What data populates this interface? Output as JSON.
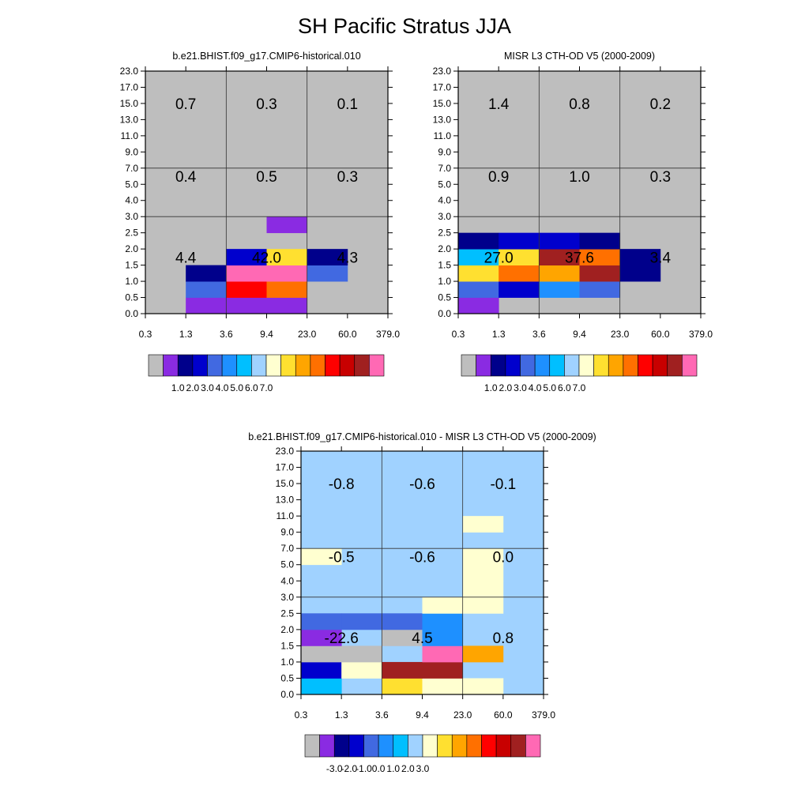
{
  "title": "SH Pacific Stratus JJA",
  "palettes": {
    "abs": [
      "#bebebe",
      "#8a2be2",
      "#00008b",
      "#0000cd",
      "#4169e1",
      "#1e90ff",
      "#00bfff",
      "#a0d2ff",
      "#ffffd0",
      "#ffe030",
      "#ffa500",
      "#ff7000",
      "#ff0000",
      "#c80000",
      "#a02020",
      "#ff69b4"
    ],
    "diff": [
      "#bebebe",
      "#8a2be2",
      "#00008b",
      "#0000cd",
      "#4169e1",
      "#1e90ff",
      "#00bfff",
      "#a0d2ff",
      "#ffffd0",
      "#ffe030",
      "#ffa500",
      "#ff7000",
      "#ff0000",
      "#c80000",
      "#a02020",
      "#ff69b4"
    ]
  },
  "chart_data": [
    {
      "type": "heatmap",
      "name": "model",
      "title": "b.e21.BHIST.f09_g17.CMIP6-historical.010",
      "x_ticks": [
        "0.3",
        "1.3",
        "3.6",
        "9.4",
        "23.0",
        "60.0",
        "379.0"
      ],
      "y_ticks": [
        "0.0",
        "0.5",
        "1.0",
        "1.5",
        "2.0",
        "2.5",
        "3.0",
        "4.0",
        "5.0",
        "7.0",
        "9.0",
        "11.0",
        "13.0",
        "15.0",
        "17.0",
        "23.0"
      ],
      "background_color_index": 0,
      "cells": [
        {
          "col": 1,
          "row": 0,
          "c": 1
        },
        {
          "col": 2,
          "row": 0,
          "c": 1
        },
        {
          "col": 3,
          "row": 0,
          "c": 1
        },
        {
          "col": 1,
          "row": 1,
          "c": 4
        },
        {
          "col": 2,
          "row": 1,
          "c": 12
        },
        {
          "col": 3,
          "row": 1,
          "c": 11
        },
        {
          "col": 1,
          "row": 2,
          "c": 2
        },
        {
          "col": 2,
          "row": 2,
          "c": 15
        },
        {
          "col": 3,
          "row": 2,
          "c": 15
        },
        {
          "col": 4,
          "row": 2,
          "c": 4
        },
        {
          "col": 2,
          "row": 3,
          "c": 3
        },
        {
          "col": 3,
          "row": 3,
          "c": 9
        },
        {
          "col": 4,
          "row": 3,
          "c": 2
        },
        {
          "col": 3,
          "row": 5,
          "c": 1
        }
      ],
      "annotations": [
        {
          "col": 0.5,
          "row": 3,
          "text": "4.4"
        },
        {
          "col": 2.5,
          "row": 3,
          "text": "42.0"
        },
        {
          "col": 4.5,
          "row": 3,
          "text": "4.3"
        },
        {
          "col": 0.5,
          "row": 8,
          "text": "0.4"
        },
        {
          "col": 2.5,
          "row": 8,
          "text": "0.5"
        },
        {
          "col": 4.5,
          "row": 8,
          "text": "0.3"
        },
        {
          "col": 0.5,
          "row": 12.5,
          "text": "0.7"
        },
        {
          "col": 2.5,
          "row": 12.5,
          "text": "0.3"
        },
        {
          "col": 4.5,
          "row": 12.5,
          "text": "0.1"
        }
      ],
      "colorbar_labels": [
        "1.0",
        "2.0",
        "3.0",
        "4.0",
        "5.0",
        "6.0",
        "7.0"
      ]
    },
    {
      "type": "heatmap",
      "name": "obs",
      "title": "MISR L3 CTH-OD V5 (2000-2009)",
      "x_ticks": [
        "0.3",
        "1.3",
        "3.6",
        "9.4",
        "23.0",
        "60.0",
        "379.0"
      ],
      "y_ticks": [
        "0.0",
        "0.5",
        "1.0",
        "1.5",
        "2.0",
        "2.5",
        "3.0",
        "4.0",
        "5.0",
        "7.0",
        "9.0",
        "11.0",
        "13.0",
        "15.0",
        "17.0",
        "23.0"
      ],
      "background_color_index": 0,
      "cells": [
        {
          "col": 0,
          "row": 0,
          "c": 1
        },
        {
          "col": 0,
          "row": 1,
          "c": 4
        },
        {
          "col": 1,
          "row": 1,
          "c": 3
        },
        {
          "col": 2,
          "row": 1,
          "c": 5
        },
        {
          "col": 3,
          "row": 1,
          "c": 4
        },
        {
          "col": 0,
          "row": 2,
          "c": 9
        },
        {
          "col": 1,
          "row": 2,
          "c": 11
        },
        {
          "col": 2,
          "row": 2,
          "c": 10
        },
        {
          "col": 3,
          "row": 2,
          "c": 14
        },
        {
          "col": 4,
          "row": 2,
          "c": 2
        },
        {
          "col": 0,
          "row": 3,
          "c": 6
        },
        {
          "col": 1,
          "row": 3,
          "c": 9
        },
        {
          "col": 2,
          "row": 3,
          "c": 14
        },
        {
          "col": 3,
          "row": 3,
          "c": 11
        },
        {
          "col": 4,
          "row": 3,
          "c": 2
        },
        {
          "col": 0,
          "row": 4,
          "c": 2
        },
        {
          "col": 1,
          "row": 4,
          "c": 3
        },
        {
          "col": 2,
          "row": 4,
          "c": 3
        },
        {
          "col": 3,
          "row": 4,
          "c": 2
        }
      ],
      "annotations": [
        {
          "col": 0.5,
          "row": 3,
          "text": "27.0"
        },
        {
          "col": 2.5,
          "row": 3,
          "text": "37.6"
        },
        {
          "col": 4.5,
          "row": 3,
          "text": "3.4"
        },
        {
          "col": 0.5,
          "row": 8,
          "text": "0.9"
        },
        {
          "col": 2.5,
          "row": 8,
          "text": "1.0"
        },
        {
          "col": 4.5,
          "row": 8,
          "text": "0.3"
        },
        {
          "col": 0.5,
          "row": 12.5,
          "text": "1.4"
        },
        {
          "col": 2.5,
          "row": 12.5,
          "text": "0.8"
        },
        {
          "col": 4.5,
          "row": 12.5,
          "text": "0.2"
        }
      ],
      "colorbar_labels": [
        "1.0",
        "2.0",
        "3.0",
        "4.0",
        "5.0",
        "6.0",
        "7.0"
      ]
    },
    {
      "type": "heatmap",
      "name": "diff",
      "title": "b.e21.BHIST.f09_g17.CMIP6-historical.010 - MISR L3 CTH-OD V5 (2000-2009)",
      "x_ticks": [
        "0.3",
        "1.3",
        "3.6",
        "9.4",
        "23.0",
        "60.0",
        "379.0"
      ],
      "y_ticks": [
        "0.0",
        "0.5",
        "1.0",
        "1.5",
        "2.0",
        "2.5",
        "3.0",
        "4.0",
        "5.0",
        "7.0",
        "9.0",
        "11.0",
        "13.0",
        "15.0",
        "17.0",
        "23.0"
      ],
      "background_color_index": 7,
      "cells": [
        {
          "col": 0,
          "row": 0,
          "c": 6
        },
        {
          "col": 2,
          "row": 0,
          "c": 9
        },
        {
          "col": 3,
          "row": 0,
          "c": 8
        },
        {
          "col": 4,
          "row": 0,
          "c": 8
        },
        {
          "col": 0,
          "row": 1,
          "c": 3
        },
        {
          "col": 1,
          "row": 1,
          "c": 8
        },
        {
          "col": 2,
          "row": 1,
          "c": 14
        },
        {
          "col": 3,
          "row": 1,
          "c": 14
        },
        {
          "col": 0,
          "row": 2,
          "c": 0
        },
        {
          "col": 1,
          "row": 2,
          "c": 0
        },
        {
          "col": 3,
          "row": 2,
          "c": 15
        },
        {
          "col": 4,
          "row": 2,
          "c": 10
        },
        {
          "col": 0,
          "row": 3,
          "c": 1
        },
        {
          "col": 2,
          "row": 3,
          "c": 0
        },
        {
          "col": 3,
          "row": 3,
          "c": 5
        },
        {
          "col": 0,
          "row": 4,
          "c": 4
        },
        {
          "col": 1,
          "row": 4,
          "c": 4
        },
        {
          "col": 2,
          "row": 4,
          "c": 4
        },
        {
          "col": 3,
          "row": 4,
          "c": 5
        },
        {
          "col": 3,
          "row": 5,
          "c": 8
        },
        {
          "col": 4,
          "row": 5,
          "c": 8
        },
        {
          "col": 4,
          "row": 6,
          "c": 8
        },
        {
          "col": 4,
          "row": 7,
          "c": 8
        },
        {
          "col": 0,
          "row": 8,
          "c": 8
        },
        {
          "col": 4,
          "row": 8,
          "c": 8
        },
        {
          "col": 4,
          "row": 10,
          "c": 8
        }
      ],
      "annotations": [
        {
          "col": 0.5,
          "row": 3,
          "text": "-22.6"
        },
        {
          "col": 2.5,
          "row": 3,
          "text": "4.5"
        },
        {
          "col": 4.5,
          "row": 3,
          "text": "0.8"
        },
        {
          "col": 0.5,
          "row": 8,
          "text": "-0.5"
        },
        {
          "col": 2.5,
          "row": 8,
          "text": "-0.6"
        },
        {
          "col": 4.5,
          "row": 8,
          "text": "0.0"
        },
        {
          "col": 0.5,
          "row": 12.5,
          "text": "-0.8"
        },
        {
          "col": 2.5,
          "row": 12.5,
          "text": "-0.6"
        },
        {
          "col": 4.5,
          "row": 12.5,
          "text": "-0.1"
        }
      ],
      "colorbar_labels": [
        "-3.0",
        "-2.0",
        "-1.0",
        "0.0",
        "1.0",
        "2.0",
        "3.0"
      ]
    }
  ]
}
